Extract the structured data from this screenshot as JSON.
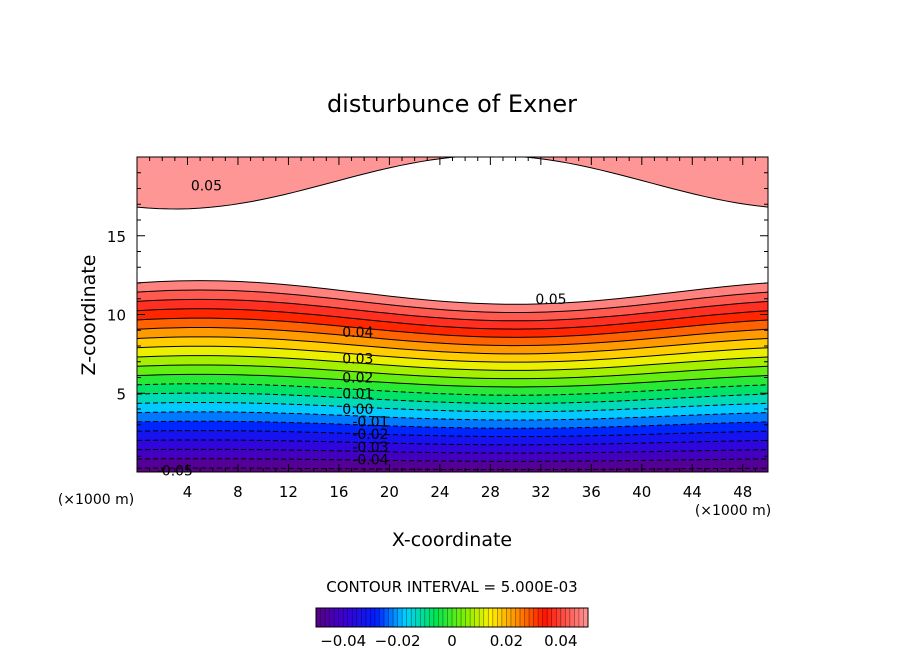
{
  "chart_data": {
    "type": "contour",
    "title": "disturbunce of Exner",
    "xlabel": "X-coordinate",
    "ylabel": "Z-coordinate",
    "x_unit": "(×1000 m)",
    "y_unit": "(×1000 m)",
    "xlim": [
      0,
      50
    ],
    "ylim": [
      0,
      20
    ],
    "x_ticks": [
      4,
      8,
      12,
      16,
      20,
      24,
      28,
      32,
      36,
      40,
      44,
      48
    ],
    "y_ticks": [
      5,
      10,
      15
    ],
    "contour_interval_text": "CONTOUR INTERVAL = 5.000E-03",
    "contour_labels": [
      {
        "text": "0.05",
        "x": 5.5,
        "z": 18.2
      },
      {
        "text": "0.05",
        "x": 32.8,
        "z": 11.0
      },
      {
        "text": "0.04",
        "x": 17.5,
        "z": 8.9
      },
      {
        "text": "0.03",
        "x": 17.5,
        "z": 7.2
      },
      {
        "text": "0.02",
        "x": 17.5,
        "z": 6.0
      },
      {
        "text": "0.01",
        "x": 17.5,
        "z": 5.0
      },
      {
        "text": "0.00",
        "x": 17.5,
        "z": 4.0
      },
      {
        "text": "-0.01",
        "x": 18.5,
        "z": 3.2
      },
      {
        "text": "-0.02",
        "x": 18.5,
        "z": 2.4
      },
      {
        "text": "-0.03",
        "x": 18.5,
        "z": 1.6
      },
      {
        "text": "-0.04",
        "x": 18.5,
        "z": 0.8
      },
      {
        "text": "-0.05",
        "x": 3.0,
        "z": 0.1
      }
    ],
    "contour_levels": [
      -0.05,
      -0.045,
      -0.04,
      -0.035,
      -0.03,
      -0.025,
      -0.02,
      -0.015,
      -0.01,
      -0.005,
      0.0,
      0.005,
      0.01,
      0.015,
      0.02,
      0.025,
      0.03,
      0.035,
      0.04,
      0.045,
      0.05
    ],
    "colorbar": {
      "range": [
        -0.05,
        0.05
      ],
      "tick_labels": [
        "−0.04",
        "−0.02",
        "0",
        "0.02",
        "0.04"
      ],
      "tick_values": [
        -0.04,
        -0.02,
        0,
        0.02,
        0.04
      ]
    }
  }
}
